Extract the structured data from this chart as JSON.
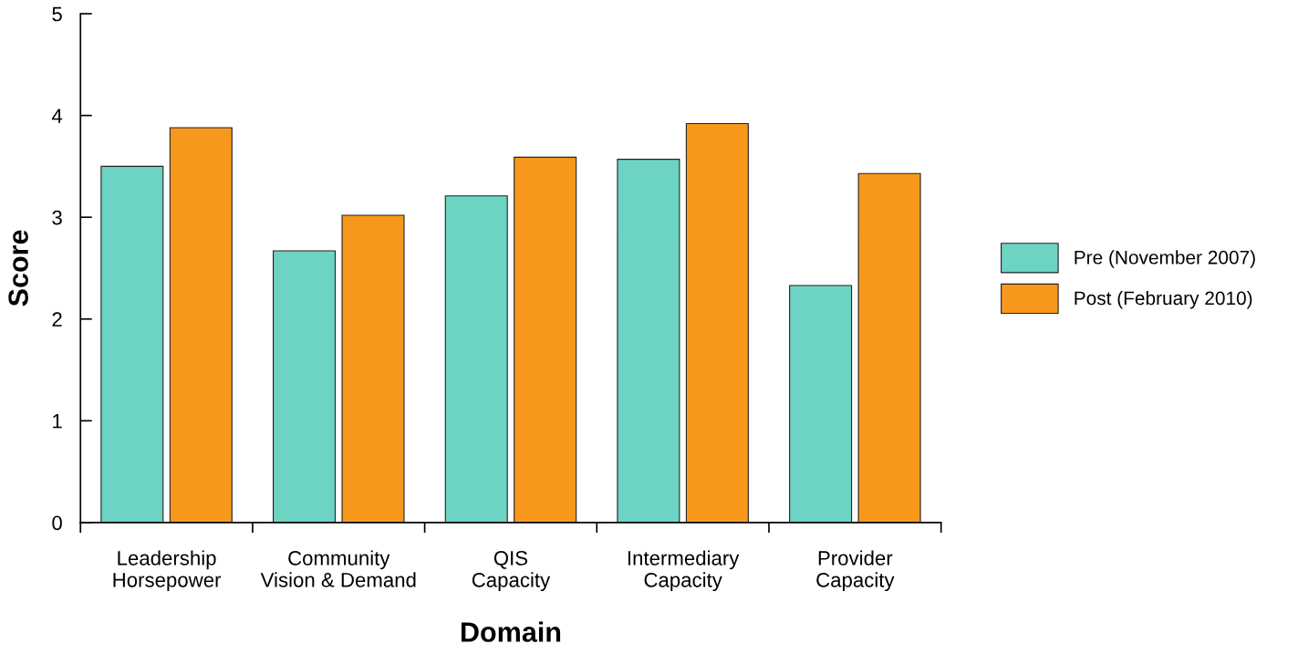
{
  "chart_data": {
    "type": "bar",
    "xlabel": "Domain",
    "ylabel": "Score",
    "categories": [
      "Leadership\nHorsepower",
      "Community\nVision & Demand",
      "QIS\nCapacity",
      "Intermediary\nCapacity",
      "Provider\nCapacity"
    ],
    "series": [
      {
        "name": "Pre (November 2007)",
        "color": "#6dd3c3",
        "values": [
          3.5,
          2.67,
          3.21,
          3.57,
          2.33
        ]
      },
      {
        "name": "Post (February 2010)",
        "color": "#f7981d",
        "values": [
          3.88,
          3.02,
          3.59,
          3.92,
          3.43
        ]
      }
    ],
    "ylim": [
      0,
      5
    ],
    "yticks": [
      0,
      1,
      2,
      3,
      4,
      5
    ],
    "grid": false,
    "legend": "right"
  }
}
